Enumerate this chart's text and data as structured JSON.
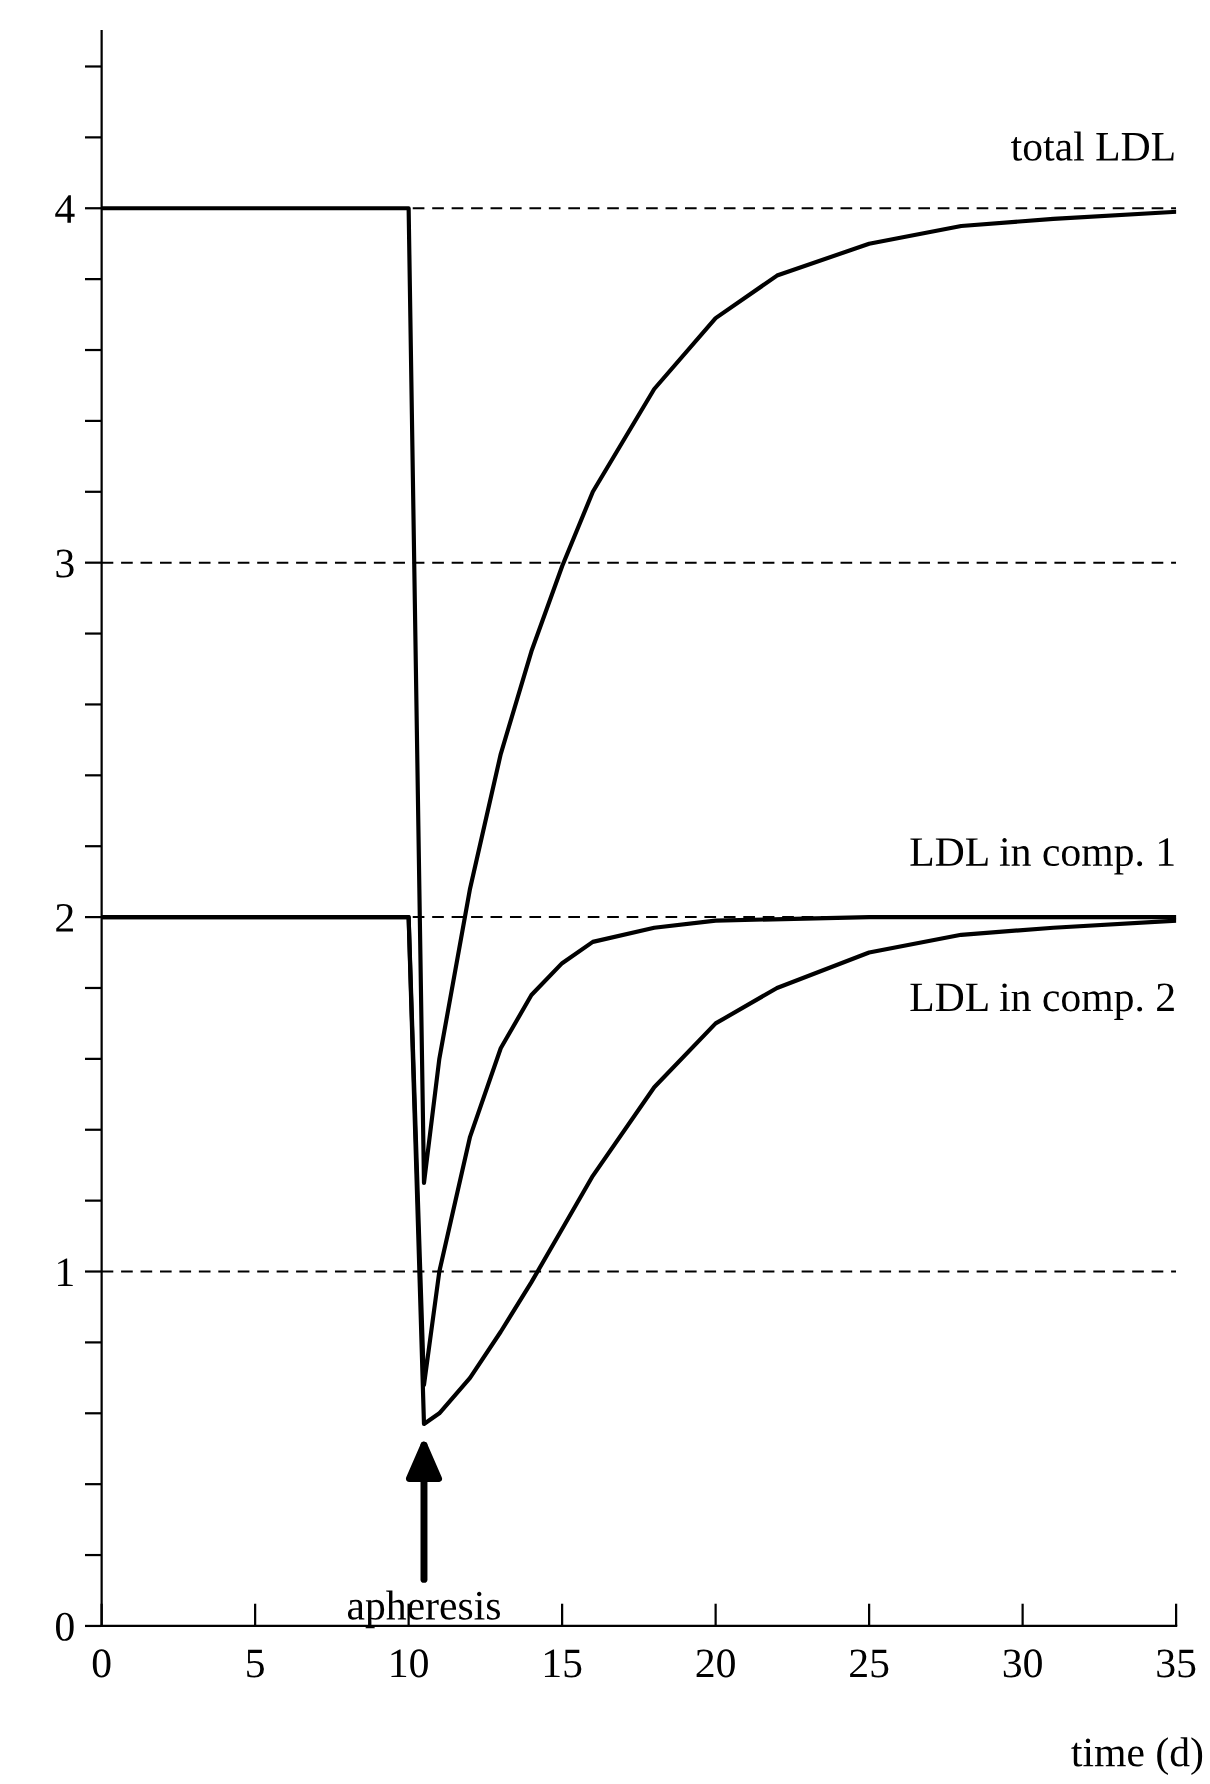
{
  "chart_data": {
    "type": "line",
    "xlabel": "time (d)",
    "xlim": [
      0,
      35
    ],
    "xticks": [
      0,
      5,
      10,
      15,
      20,
      25,
      30,
      35
    ],
    "ylim": [
      0,
      4.5
    ],
    "yticks": [
      0,
      {
        "value": 0.2,
        "label": null
      },
      {
        "value": 0.4,
        "label": null
      },
      {
        "value": 0.6,
        "label": null
      },
      {
        "value": 0.8,
        "label": null
      },
      1,
      {
        "value": 1.2,
        "label": null
      },
      {
        "value": 1.4,
        "label": null
      },
      {
        "value": 1.6,
        "label": null
      },
      {
        "value": 1.8,
        "label": null
      },
      2,
      {
        "value": 2.2,
        "label": null
      },
      {
        "value": 2.4,
        "label": null
      },
      {
        "value": 2.6,
        "label": null
      },
      {
        "value": 2.8,
        "label": null
      },
      3,
      {
        "value": 3.2,
        "label": null
      },
      {
        "value": 3.4,
        "label": null
      },
      {
        "value": 3.6,
        "label": null
      },
      {
        "value": 3.8,
        "label": null
      },
      4,
      {
        "value": 4.2,
        "label": null
      },
      {
        "value": 4.4,
        "label": null
      }
    ],
    "grid": false,
    "legend": false,
    "marker": "none",
    "line_style": "solid",
    "series": [
      {
        "name": "total LDL",
        "color": "#000000",
        "x": [
          0,
          10,
          10.5,
          11,
          12,
          13,
          14,
          15,
          16,
          18,
          20,
          22,
          25,
          28,
          31,
          35
        ],
        "values": [
          4,
          4,
          1.25,
          1.6,
          2.08,
          2.46,
          2.75,
          2.99,
          3.2,
          3.49,
          3.69,
          3.81,
          3.9,
          3.95,
          3.97,
          3.99
        ]
      },
      {
        "name": "LDL in comp. 1",
        "color": "#000000",
        "x": [
          0,
          10,
          10.5,
          11,
          12,
          13,
          14,
          15,
          16,
          18,
          20,
          25,
          35
        ],
        "values": [
          2,
          2,
          0.68,
          1.0,
          1.38,
          1.63,
          1.78,
          1.87,
          1.93,
          1.97,
          1.99,
          2.0,
          2.0
        ]
      },
      {
        "name": "LDL in comp. 2",
        "color": "#000000",
        "x": [
          0,
          10,
          10.5,
          11,
          12,
          13,
          14,
          15,
          16,
          18,
          20,
          22,
          25,
          28,
          31,
          35
        ],
        "values": [
          2,
          2,
          0.57,
          0.6,
          0.7,
          0.83,
          0.97,
          1.12,
          1.27,
          1.52,
          1.7,
          1.8,
          1.9,
          1.95,
          1.97,
          1.99
        ]
      }
    ],
    "ref_lines": [
      {
        "axis": "y",
        "value": 1,
        "line_style": "dashed"
      },
      {
        "axis": "y",
        "value": 2,
        "line_style": "dashed"
      },
      {
        "axis": "y",
        "value": 3,
        "line_style": "dashed"
      },
      {
        "axis": "y",
        "value": 4,
        "line_style": "dashed"
      }
    ],
    "annotations": [
      {
        "text": "apheresis",
        "x": 10.5,
        "y": 0.55
      }
    ]
  }
}
